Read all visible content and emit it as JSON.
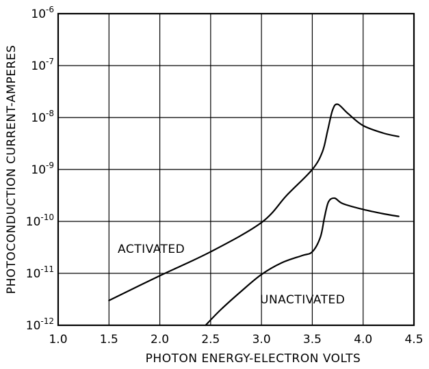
{
  "chart_data": {
    "type": "line",
    "xlabel": "PHOTON ENERGY-ELECTRON VOLTS",
    "ylabel": "PHOTOCONDUCTION CURRENT-AMPERES",
    "xlim": [
      1.0,
      4.5
    ],
    "ylim": [
      1e-12,
      1e-06
    ],
    "y_scale": "log",
    "grid": true,
    "x_ticks": [
      "1.0",
      "1.5",
      "2.0",
      "2.5",
      "3.0",
      "3.5",
      "4.0",
      "4.5"
    ],
    "y_ticks": [
      {
        "base": "10",
        "exp": "-12"
      },
      {
        "base": "10",
        "exp": "-11"
      },
      {
        "base": "10",
        "exp": "-10"
      },
      {
        "base": "10",
        "exp": "-9"
      },
      {
        "base": "10",
        "exp": "-8"
      },
      {
        "base": "10",
        "exp": "-7"
      },
      {
        "base": "10",
        "exp": "-6"
      }
    ],
    "series": [
      {
        "name": "ACTIVATED",
        "x": [
          1.5,
          2.0,
          2.5,
          3.0,
          3.25,
          3.5,
          3.6,
          3.65,
          3.7,
          3.75,
          3.85,
          4.0,
          4.2,
          4.35
        ],
        "y": [
          3e-12,
          9e-12,
          2.6e-11,
          9.5e-11,
          3.2e-10,
          1e-09,
          2.2e-09,
          5.5e-09,
          1.4e-08,
          1.8e-08,
          1.2e-08,
          7e-09,
          5e-09,
          4.3e-09
        ]
      },
      {
        "name": "UNACTIVATED",
        "x": [
          2.45,
          2.6,
          2.8,
          3.0,
          3.2,
          3.4,
          3.5,
          3.58,
          3.62,
          3.66,
          3.72,
          3.8,
          4.0,
          4.2,
          4.35
        ],
        "y": [
          1e-12,
          2e-12,
          4.5e-12,
          9.5e-12,
          1.6e-11,
          2.2e-11,
          2.6e-11,
          5e-11,
          1.2e-10,
          2.4e-10,
          2.8e-10,
          2.2e-10,
          1.7e-10,
          1.4e-10,
          1.25e-10
        ]
      }
    ]
  }
}
